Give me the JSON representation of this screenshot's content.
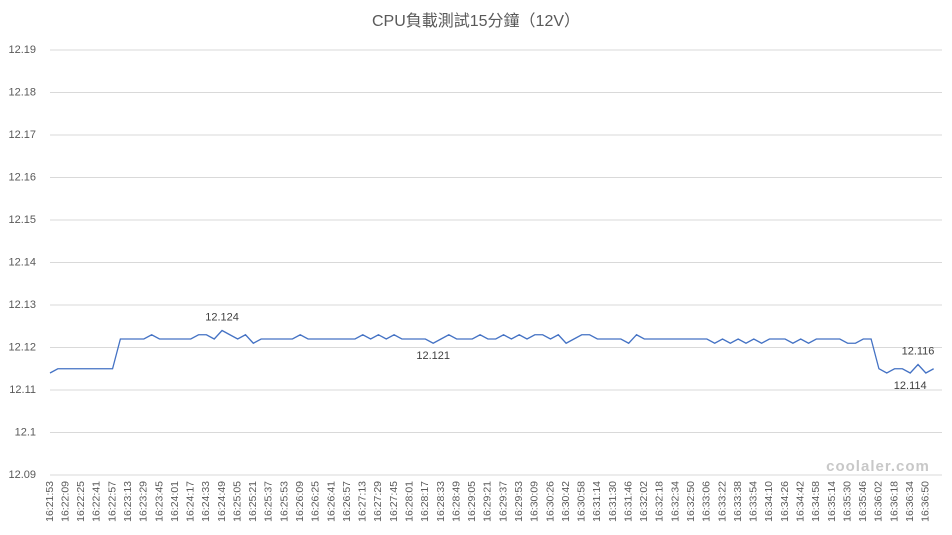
{
  "chart_data": {
    "type": "line",
    "title": "CPU負載測試15分鐘（12V）",
    "watermark": "coolaler.com",
    "categories": [
      "16:21:53",
      null,
      "16:22:09",
      null,
      "16:22:25",
      null,
      "16:22:41",
      null,
      "16:22:57",
      null,
      "16:23:13",
      null,
      "16:23:29",
      null,
      "16:23:45",
      null,
      "16:24:01",
      null,
      "16:24:17",
      null,
      "16:24:33",
      null,
      "16:24:49",
      null,
      "16:25:05",
      null,
      "16:25:21",
      null,
      "16:25:37",
      null,
      "16:25:53",
      null,
      "16:26:09",
      null,
      "16:26:25",
      null,
      "16:26:41",
      null,
      "16:26:57",
      null,
      "16:27:13",
      null,
      "16:27:29",
      null,
      "16:27:45",
      null,
      "16:28:01",
      null,
      "16:28:17",
      null,
      "16:28:33",
      null,
      "16:28:49",
      null,
      "16:29:05",
      null,
      "16:29:21",
      null,
      "16:29:37",
      null,
      "16:29:53",
      null,
      "16:30:09",
      null,
      "16:30:26",
      null,
      "16:30:42",
      null,
      "16:30:58",
      null,
      "16:31:14",
      null,
      "16:31:30",
      null,
      "16:31:46",
      null,
      "16:32:02",
      null,
      "16:32:18",
      null,
      "16:32:34",
      null,
      "16:32:50",
      null,
      "16:33:06",
      null,
      "16:33:22",
      null,
      "16:33:38",
      null,
      "16:33:54",
      null,
      "16:34:10",
      null,
      "16:34:26",
      null,
      "16:34:42",
      null,
      "16:34:58",
      null,
      "16:35:14",
      null,
      "16:35:30",
      null,
      "16:35:46",
      null,
      "16:36:02",
      null,
      "16:36:18",
      null,
      "16:36:34",
      null,
      "16:36:50",
      null
    ],
    "values": [
      12.114,
      12.115,
      12.115,
      12.115,
      12.115,
      12.115,
      12.115,
      12.115,
      12.115,
      12.122,
      12.122,
      12.122,
      12.122,
      12.123,
      12.122,
      12.122,
      12.122,
      12.122,
      12.122,
      12.123,
      12.123,
      12.122,
      12.124,
      12.123,
      12.122,
      12.123,
      12.121,
      12.122,
      12.122,
      12.122,
      12.122,
      12.122,
      12.123,
      12.122,
      12.122,
      12.122,
      12.122,
      12.122,
      12.122,
      12.122,
      12.123,
      12.122,
      12.123,
      12.122,
      12.123,
      12.122,
      12.122,
      12.122,
      12.122,
      12.121,
      12.122,
      12.123,
      12.122,
      12.122,
      12.122,
      12.123,
      12.122,
      12.122,
      12.123,
      12.122,
      12.123,
      12.122,
      12.123,
      12.123,
      12.122,
      12.123,
      12.121,
      12.122,
      12.123,
      12.123,
      12.122,
      12.122,
      12.122,
      12.122,
      12.121,
      12.123,
      12.122,
      12.122,
      12.122,
      12.122,
      12.122,
      12.122,
      12.122,
      12.122,
      12.122,
      12.121,
      12.122,
      12.121,
      12.122,
      12.121,
      12.122,
      12.121,
      12.122,
      12.122,
      12.122,
      12.121,
      12.122,
      12.121,
      12.122,
      12.122,
      12.122,
      12.122,
      12.121,
      12.121,
      12.122,
      12.122,
      12.115,
      12.114,
      12.115,
      12.115,
      12.114,
      12.116,
      12.114,
      12.115
    ],
    "value_labels": [
      null,
      null,
      null,
      null,
      null,
      null,
      null,
      null,
      null,
      null,
      null,
      null,
      null,
      null,
      null,
      null,
      null,
      null,
      null,
      null,
      null,
      null,
      "12.124",
      null,
      null,
      null,
      null,
      null,
      null,
      null,
      null,
      null,
      null,
      null,
      null,
      null,
      null,
      null,
      null,
      null,
      null,
      null,
      null,
      null,
      null,
      null,
      null,
      null,
      null,
      "12.121",
      null,
      null,
      null,
      null,
      null,
      null,
      null,
      null,
      null,
      null,
      null,
      null,
      null,
      null,
      null,
      null,
      null,
      null,
      null,
      null,
      null,
      null,
      null,
      null,
      null,
      null,
      null,
      null,
      null,
      null,
      null,
      null,
      null,
      null,
      null,
      null,
      null,
      null,
      null,
      null,
      null,
      null,
      null,
      null,
      null,
      null,
      null,
      null,
      null,
      null,
      null,
      null,
      null,
      null,
      null,
      null,
      null,
      null,
      null,
      null,
      "12.114",
      "12.116",
      null,
      null
    ],
    "color": "#4472c4",
    "ylim": [
      12.09,
      12.19
    ],
    "yticks": [
      12.09,
      12.1,
      12.11,
      12.12,
      12.13,
      12.14,
      12.15,
      12.16,
      12.17,
      12.18,
      12.19
    ],
    "grid": true
  }
}
